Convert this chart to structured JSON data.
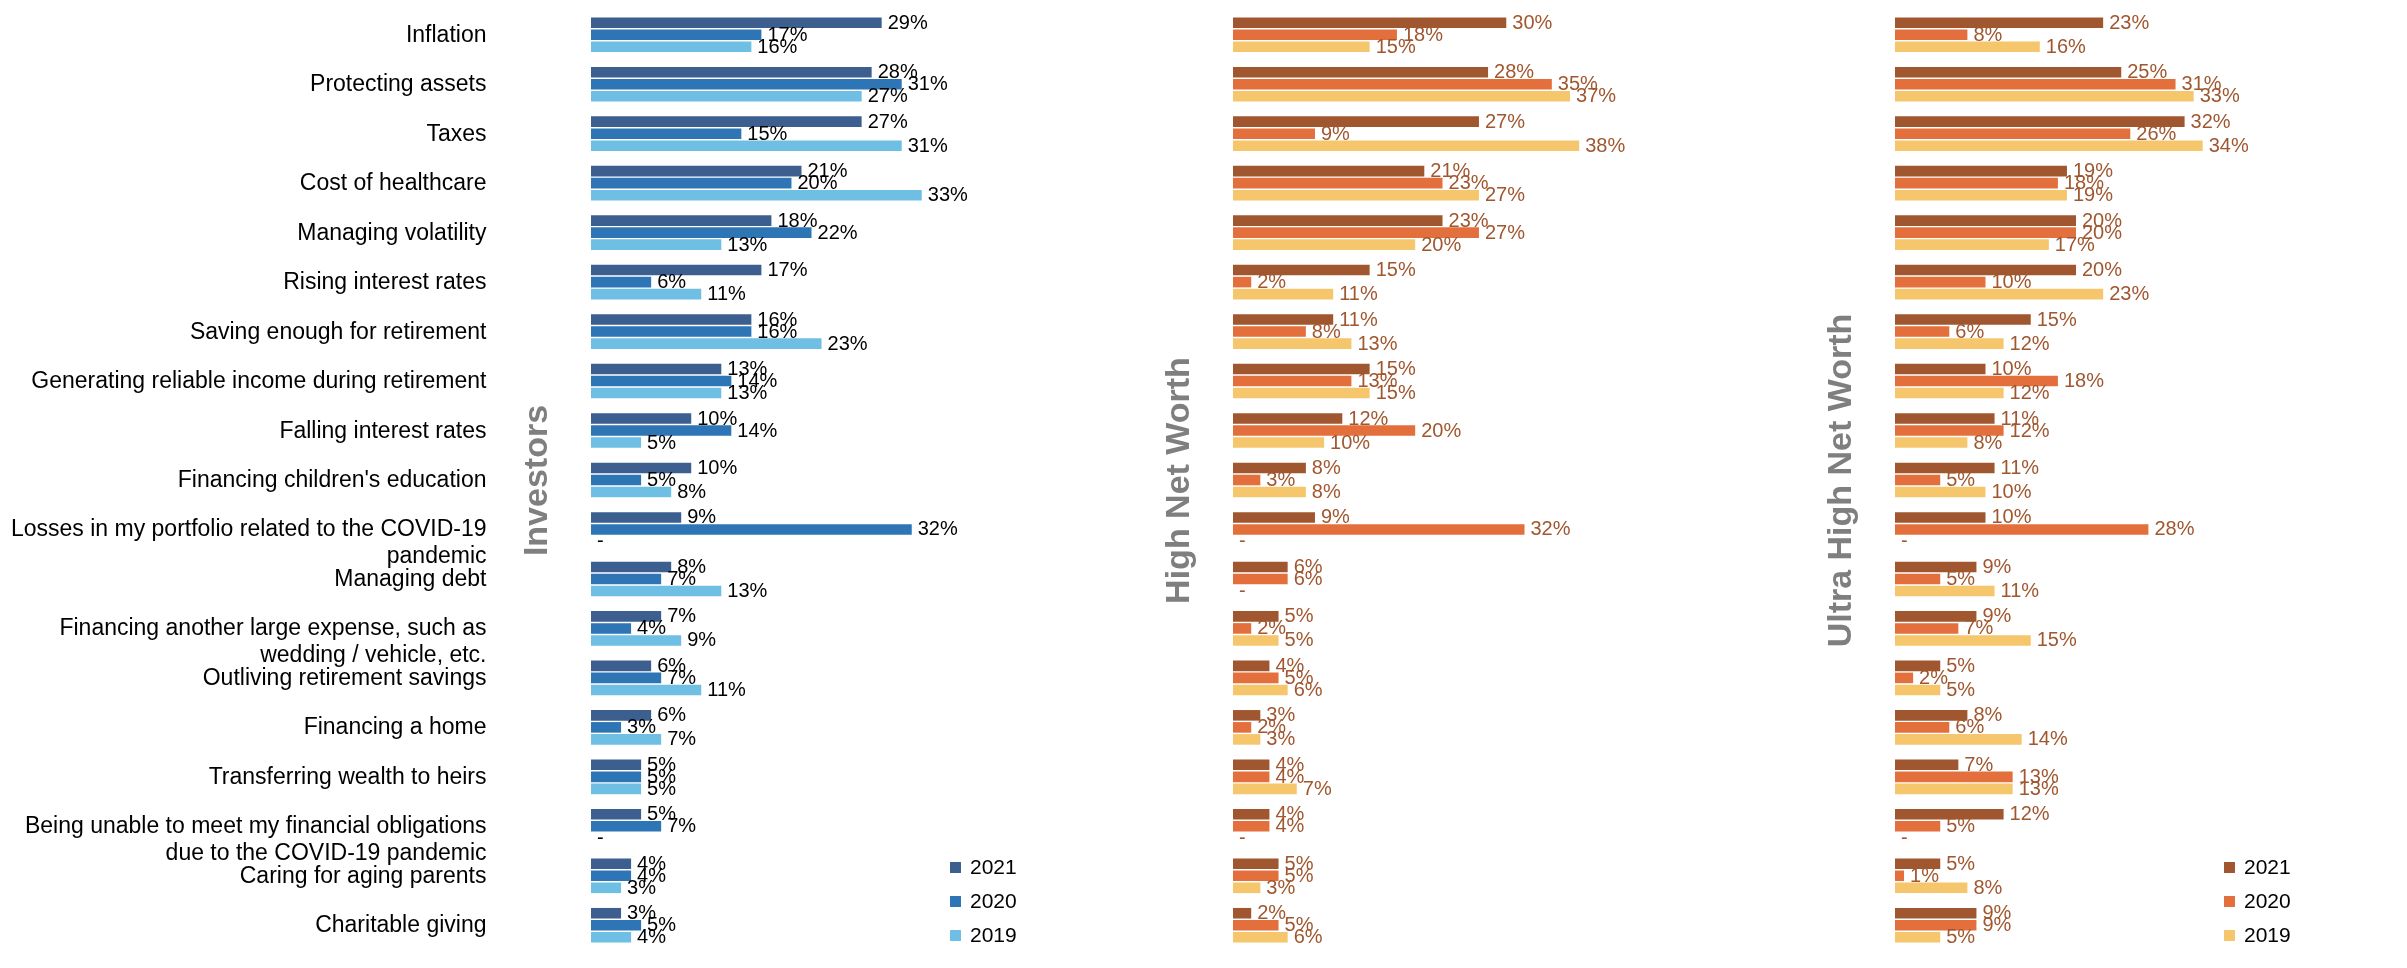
{
  "chart_data": [
    {
      "type": "bar",
      "orientation": "horizontal",
      "ylabel": "Investors",
      "legend": "bottom right",
      "tick_labels": "y",
      "categories": [
        "Inflation",
        "Protecting assets",
        "Taxes",
        "Cost of healthcare",
        "Managing volatility",
        "Rising interest rates",
        "Saving enough for retirement",
        "Generating reliable income during retirement",
        "Falling interest rates",
        "Financing children's education",
        "Losses in my portfolio related to the COVID-19 pandemic",
        "Managing debt",
        "Financing another large expense, such as wedding / vehicle, etc.",
        "Outliving retirement savings",
        "Financing a home",
        "Transferring wealth to heirs",
        "Being unable to meet my financial obligations due to the COVID-19 pandemic",
        "Caring for aging parents",
        "Charitable giving"
      ],
      "series": [
        {
          "name": "2021",
          "color": "#3d5f8f",
          "values": [
            29,
            28,
            27,
            21,
            18,
            17,
            16,
            13,
            10,
            10,
            9,
            8,
            7,
            6,
            6,
            5,
            5,
            4,
            3
          ],
          "value_labels": [
            "29%",
            "28%",
            "27%",
            "21%",
            "18%",
            "17%",
            "16%",
            "13%",
            "10%",
            "10%",
            "9%",
            "8%",
            "7%",
            "6%",
            "6%",
            "5%",
            "5%",
            "4%",
            "3%"
          ]
        },
        {
          "name": "2020",
          "color": "#2e75b6",
          "values": [
            17,
            31,
            15,
            20,
            22,
            6,
            16,
            14,
            14,
            5,
            32,
            7,
            4,
            7,
            3,
            5,
            7,
            4,
            5
          ],
          "value_labels": [
            "17%",
            "31%",
            "15%",
            "20%",
            "22%",
            "6%",
            "16%",
            "14%",
            "14%",
            "5%",
            "32%",
            "7%",
            "4%",
            "7%",
            "3%",
            "5%",
            "7%",
            "4%",
            "5%"
          ]
        },
        {
          "name": "2019",
          "color": "#6fbfe4",
          "values": [
            16,
            27,
            31,
            33,
            13,
            11,
            23,
            13,
            5,
            8,
            null,
            13,
            9,
            11,
            7,
            5,
            null,
            3,
            4
          ],
          "value_labels": [
            "16%",
            "27%",
            "31%",
            "33%",
            "13%",
            "11%",
            "23%",
            "13%",
            "5%",
            "8%",
            "-",
            "13%",
            "9%",
            "11%",
            "7%",
            "5%",
            "-",
            "3%",
            "4%"
          ]
        }
      ]
    },
    {
      "type": "bar",
      "orientation": "horizontal",
      "ylabel": "High Net Worth",
      "tick_labels": false,
      "categories": [
        null,
        null,
        null,
        null,
        null,
        null,
        null,
        null,
        null,
        null,
        null,
        null,
        null,
        null,
        null,
        null,
        null,
        null,
        null
      ],
      "series": [
        {
          "color": "#a0572f",
          "values": [
            30,
            28,
            27,
            21,
            23,
            15,
            11,
            15,
            12,
            8,
            9,
            6,
            5,
            4,
            3,
            4,
            4,
            5,
            2
          ],
          "value_labels": [
            "30%",
            "28%",
            "27%",
            "21%",
            "23%",
            "15%",
            "11%",
            "15%",
            "12%",
            "8%",
            "9%",
            "6%",
            "5%",
            "4%",
            "3%",
            "4%",
            "4%",
            "5%",
            "2%"
          ]
        },
        {
          "color": "#e3703c",
          "values": [
            18,
            35,
            9,
            23,
            27,
            2,
            8,
            13,
            20,
            3,
            32,
            6,
            2,
            5,
            2,
            4,
            4,
            5,
            5
          ],
          "value_labels": [
            "18%",
            "35%",
            "9%",
            "23%",
            "27%",
            "2%",
            "8%",
            "13%",
            "20%",
            "3%",
            "32%",
            "6%",
            "2%",
            "5%",
            "2%",
            "4%",
            "4%",
            "5%",
            "5%"
          ]
        },
        {
          "color": "#f5c66b",
          "values": [
            15,
            37,
            38,
            27,
            20,
            11,
            13,
            15,
            10,
            8,
            null,
            null,
            5,
            6,
            3,
            7,
            null,
            3,
            6
          ],
          "value_labels": [
            "15%",
            "37%",
            "38%",
            "27%",
            "20%",
            "11%",
            "13%",
            "15%",
            "10%",
            "8%",
            "-",
            "-",
            "5%",
            "6%",
            "3%",
            "7%",
            "-",
            "3%",
            "6%"
          ]
        }
      ]
    },
    {
      "type": "bar",
      "orientation": "horizontal",
      "ylabel": "Ultra High Net Worth",
      "legend": "bottom right",
      "tick_labels": false,
      "categories": [
        null,
        null,
        null,
        null,
        null,
        null,
        null,
        null,
        null,
        null,
        null,
        null,
        null,
        null,
        null,
        null,
        null,
        null,
        null
      ],
      "series": [
        {
          "name": "2021",
          "color": "#a0572f",
          "values": [
            23,
            25,
            32,
            19,
            20,
            20,
            15,
            10,
            11,
            11,
            10,
            9,
            9,
            5,
            8,
            7,
            12,
            5,
            9
          ],
          "value_labels": [
            "23%",
            "25%",
            "32%",
            "19%",
            "20%",
            "20%",
            "15%",
            "10%",
            "11%",
            "11%",
            "10%",
            "9%",
            "9%",
            "5%",
            "8%",
            "7%",
            "12%",
            "5%",
            "9%"
          ]
        },
        {
          "name": "2020",
          "color": "#e3703c",
          "values": [
            8,
            31,
            26,
            18,
            20,
            10,
            6,
            18,
            12,
            5,
            28,
            5,
            7,
            2,
            6,
            13,
            5,
            1,
            9
          ],
          "value_labels": [
            "8%",
            "31%",
            "26%",
            "18%",
            "20%",
            "10%",
            "6%",
            "18%",
            "12%",
            "5%",
            "28%",
            "5%",
            "7%",
            "2%",
            "6%",
            "13%",
            "5%",
            "1%",
            "9%"
          ]
        },
        {
          "name": "2019",
          "color": "#f5c66b",
          "values": [
            16,
            33,
            34,
            19,
            17,
            23,
            12,
            12,
            8,
            10,
            null,
            11,
            15,
            5,
            14,
            13,
            null,
            8,
            5
          ],
          "value_labels": [
            "16%",
            "33%",
            "34%",
            "19%",
            "17%",
            "23%",
            "12%",
            "12%",
            "8%",
            "10%",
            "-",
            "11%",
            "15%",
            "5%",
            "14%",
            "13%",
            "-",
            "8%",
            "5%"
          ]
        }
      ]
    }
  ]
}
